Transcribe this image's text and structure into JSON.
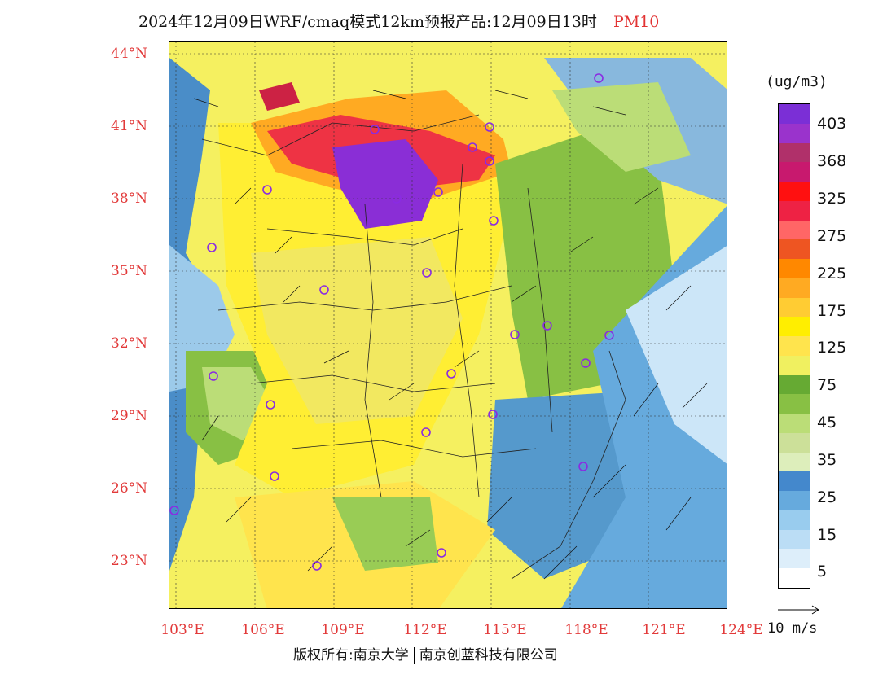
{
  "title": {
    "main": "2024年12月09日WRF/cmaq模式12km预报产品:12月09日13时",
    "variable": "PM10"
  },
  "axes": {
    "lat_labels": [
      "44°N",
      "41°N",
      "38°N",
      "35°N",
      "32°N",
      "29°N",
      "26°N",
      "23°N"
    ],
    "lon_labels": [
      "103°E",
      "106°E",
      "109°E",
      "112°E",
      "115°E",
      "118°E",
      "121°E",
      "124°E"
    ]
  },
  "colorbar": {
    "unit": "(ug/m3)",
    "colors": [
      "#7b2fd6",
      "#9a33cc",
      "#b0306a",
      "#c8196e",
      "#ff1010",
      "#ee2244",
      "#ff6666",
      "#ee5522",
      "#ff8800",
      "#ffaa22",
      "#ffcc33",
      "#ffee00",
      "#ffe44d",
      "#f0f060",
      "#66aa33",
      "#88c044",
      "#bbdd77",
      "#cce099",
      "#ddeebb",
      "#4488cc",
      "#66aadd",
      "#99ccee",
      "#bbddf5",
      "#ddeefa",
      "#ffffff"
    ],
    "tick_labels": [
      "403",
      "368",
      "325",
      "275",
      "225",
      "175",
      "125",
      "75",
      "45",
      "35",
      "25",
      "15",
      "5"
    ]
  },
  "vector_reference": {
    "label": "10 m/s"
  },
  "copyright": {
    "left": "版权所有:南京大学",
    "right": "南京创蓝科技有限公司"
  }
}
